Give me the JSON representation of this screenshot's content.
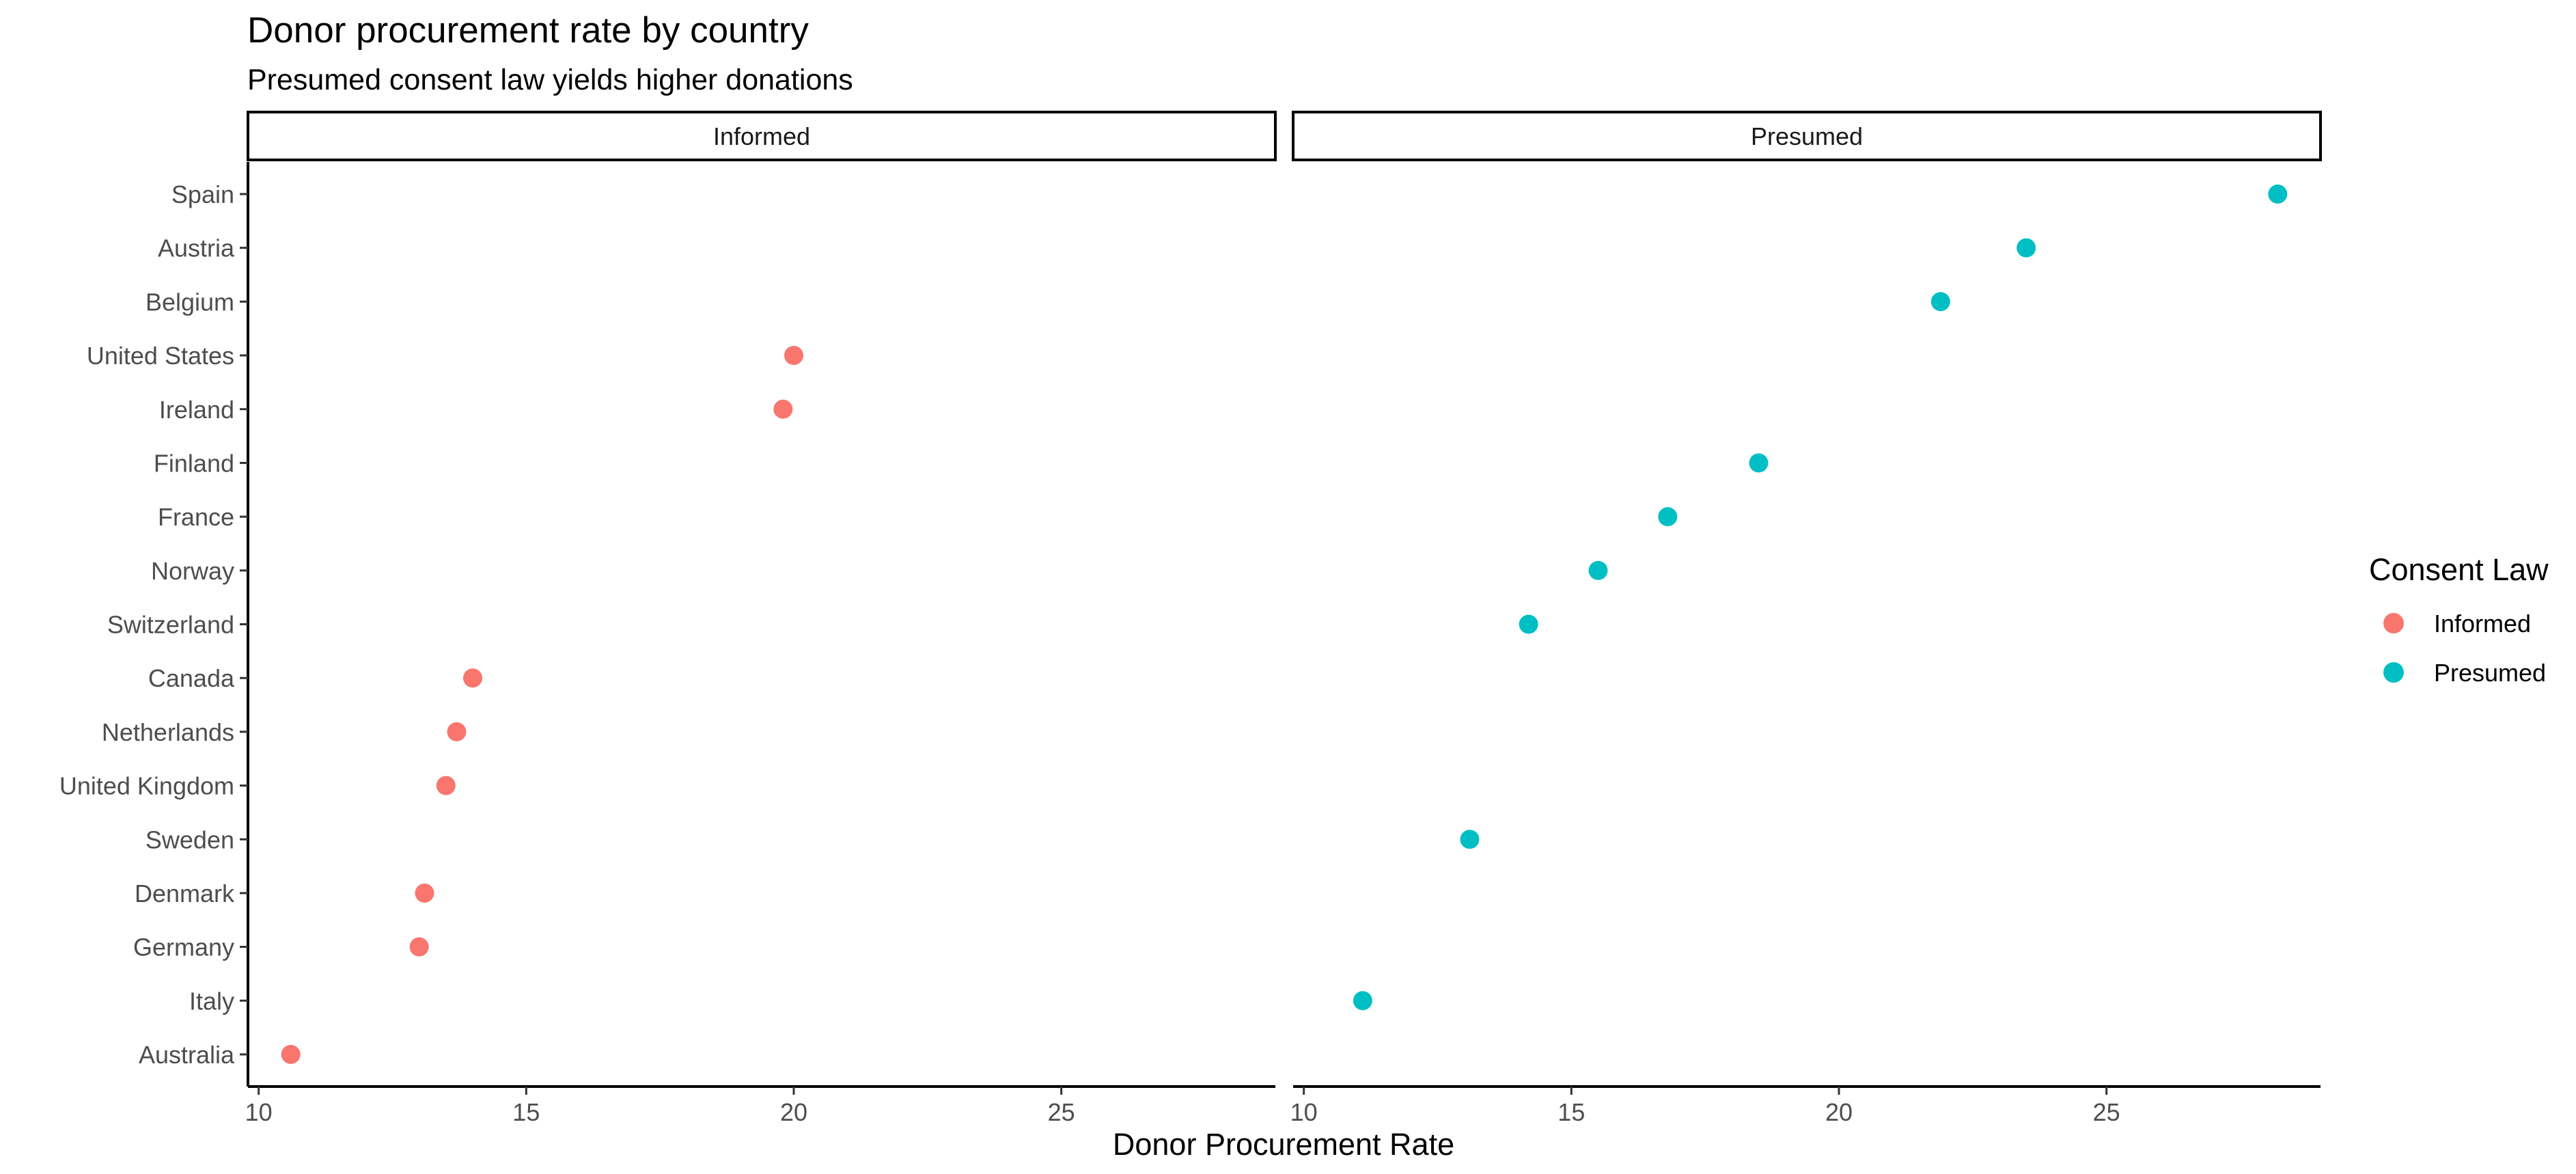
{
  "chart_data": {
    "type": "scatter",
    "title": "Donor procurement rate by country",
    "subtitle": "Presumed consent law yields higher donations",
    "xlabel": "Donor Procurement Rate",
    "ylabel": "",
    "xlim": [
      9.8,
      29.0
    ],
    "x_ticks": [
      10,
      15,
      20,
      25
    ],
    "grid": false,
    "legend": {
      "title": "Consent Law",
      "placement": "right"
    },
    "facets": [
      "Informed",
      "Presumed"
    ],
    "categories": [
      "Spain",
      "Austria",
      "Belgium",
      "United States",
      "Ireland",
      "Finland",
      "France",
      "Norway",
      "Switzerland",
      "Canada",
      "Netherlands",
      "United Kingdom",
      "Sweden",
      "Denmark",
      "Germany",
      "Italy",
      "Australia"
    ],
    "series": [
      {
        "name": "Informed",
        "color": "#F8766D",
        "points": [
          {
            "country": "United States",
            "value": 20.0
          },
          {
            "country": "Ireland",
            "value": 19.8
          },
          {
            "country": "Canada",
            "value": 14.0
          },
          {
            "country": "Netherlands",
            "value": 13.7
          },
          {
            "country": "United Kingdom",
            "value": 13.5
          },
          {
            "country": "Denmark",
            "value": 13.1
          },
          {
            "country": "Germany",
            "value": 13.0
          },
          {
            "country": "Australia",
            "value": 10.6
          }
        ]
      },
      {
        "name": "Presumed",
        "color": "#00BFC4",
        "points": [
          {
            "country": "Spain",
            "value": 28.2
          },
          {
            "country": "Austria",
            "value": 23.5
          },
          {
            "country": "Belgium",
            "value": 21.9
          },
          {
            "country": "Finland",
            "value": 18.5
          },
          {
            "country": "France",
            "value": 16.8
          },
          {
            "country": "Norway",
            "value": 15.5
          },
          {
            "country": "Switzerland",
            "value": 14.2
          },
          {
            "country": "Sweden",
            "value": 13.1
          },
          {
            "country": "Italy",
            "value": 11.1
          }
        ]
      }
    ]
  }
}
